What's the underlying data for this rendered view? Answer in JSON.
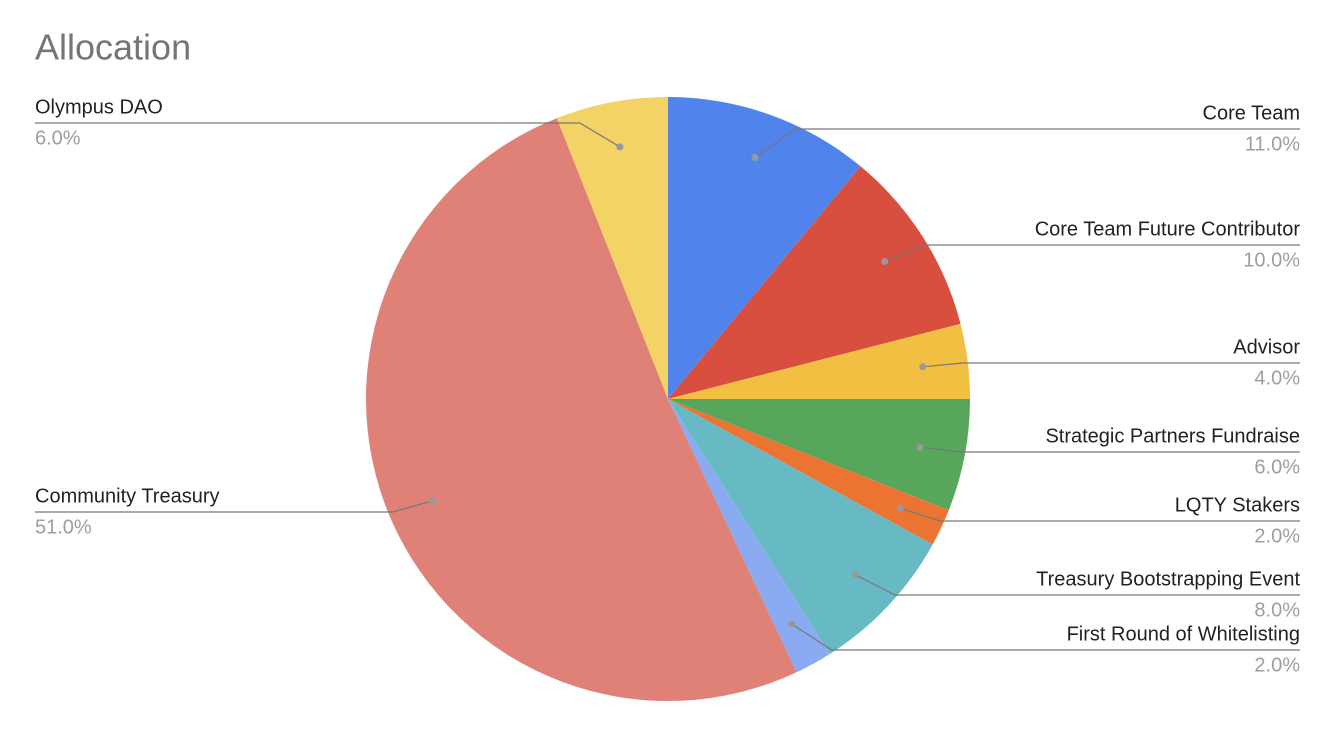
{
  "chart_data": {
    "type": "pie",
    "title": "Allocation",
    "categories": [
      "Core Team",
      "Core Team Future Contributor",
      "Advisor",
      "Strategic Partners Fundraise",
      "LQTY Stakers",
      "Treasury Bootstrapping Event",
      "First Round of Whitelisting",
      "Community Treasury",
      "Olympus DAO"
    ],
    "values": [
      11,
      10,
      4,
      6,
      2,
      8,
      2,
      51,
      6
    ],
    "value_labels": [
      "11.0%",
      "10.0%",
      "4.0%",
      "6.0%",
      "2.0%",
      "8.0%",
      "2.0%",
      "51.0%",
      "6.0%"
    ],
    "colors": [
      "#5083ec",
      "#d94f3f",
      "#f1c042",
      "#58a65c",
      "#ec7432",
      "#67bac3",
      "#8aabf2",
      "#e08177",
      "#f3d266"
    ]
  }
}
